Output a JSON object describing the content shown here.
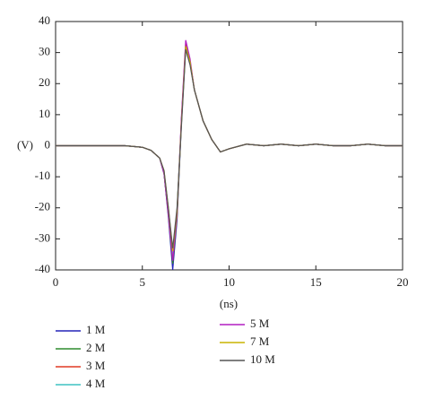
{
  "chart_data": {
    "type": "line",
    "x_label": "(ns)",
    "y_label": "(V)",
    "xlim": [
      0,
      20
    ],
    "xticks": [
      0,
      5,
      10,
      15,
      20
    ],
    "ylim": [
      -40,
      40
    ],
    "yticks": [
      -40,
      -30,
      -20,
      -10,
      0,
      10,
      20,
      30,
      40
    ],
    "x": [
      0,
      1,
      2,
      3,
      4,
      5,
      5.5,
      6,
      6.25,
      6.5,
      6.75,
      7,
      7.25,
      7.5,
      7.75,
      8,
      8.5,
      9,
      9.5,
      10,
      11,
      12,
      13,
      14,
      15,
      16,
      17,
      18,
      19,
      20
    ],
    "series": [
      {
        "name": "1 M",
        "color": "#2323b8",
        "values": [
          0,
          0,
          0,
          0,
          0,
          -0.5,
          -1.5,
          -4,
          -9,
          -23,
          -40,
          -24,
          7,
          32,
          27,
          18,
          8,
          2,
          -2,
          -1,
          0.5,
          0,
          0.5,
          0,
          0.5,
          0,
          0,
          0.5,
          0,
          0
        ]
      },
      {
        "name": "2 M",
        "color": "#2e8b2e",
        "values": [
          0,
          0,
          0,
          0,
          0,
          -0.5,
          -1.5,
          -4,
          -9,
          -22,
          -38,
          -23,
          8,
          32,
          27,
          18,
          8,
          2,
          -2,
          -1,
          0.5,
          0,
          0.5,
          0,
          0.5,
          0,
          0,
          0.5,
          0,
          0
        ]
      },
      {
        "name": "3 M",
        "color": "#e03a24",
        "values": [
          0,
          0,
          0,
          0,
          0,
          -0.5,
          -1.5,
          -4,
          -9,
          -22,
          -37,
          -22,
          8,
          33,
          27,
          18,
          8,
          2,
          -2,
          -1,
          0.5,
          0,
          0.5,
          0,
          0.5,
          0,
          0,
          0.5,
          0,
          0
        ]
      },
      {
        "name": "4 M",
        "color": "#3fc2c2",
        "values": [
          0,
          0,
          0,
          0,
          0,
          -0.5,
          -1.5,
          -4,
          -9,
          -21,
          -36,
          -21,
          8,
          32,
          27,
          18,
          8,
          2,
          -2,
          -1,
          0.5,
          0,
          0.5,
          0,
          0.5,
          0,
          0,
          0.5,
          0,
          0
        ]
      },
      {
        "name": "5 M",
        "color": "#b21fc2",
        "values": [
          0,
          0,
          0,
          0,
          0,
          -0.5,
          -1.5,
          -4,
          -9,
          -22,
          -37,
          -22,
          9,
          34,
          28,
          18,
          8,
          2,
          -2,
          -1,
          0.5,
          0,
          0.5,
          0,
          0.5,
          0,
          0,
          0.5,
          0,
          0
        ]
      },
      {
        "name": "7 M",
        "color": "#c9b400",
        "values": [
          0,
          0,
          0,
          0,
          0,
          -0.5,
          -1.5,
          -4,
          -8,
          -20,
          -34,
          -21,
          7,
          32,
          27,
          18,
          8,
          2,
          -2,
          -1,
          0.5,
          0,
          0.5,
          0,
          0.5,
          0,
          0,
          0.5,
          0,
          0
        ]
      },
      {
        "name": "10 M",
        "color": "#555555",
        "values": [
          0,
          0,
          0,
          0,
          0,
          -0.5,
          -1.5,
          -4,
          -8,
          -20,
          -33,
          -20,
          6,
          31,
          26,
          18,
          8,
          2,
          -2,
          -1,
          0.5,
          0,
          0.5,
          0,
          0.5,
          0,
          0,
          0.5,
          0,
          0
        ]
      }
    ]
  }
}
